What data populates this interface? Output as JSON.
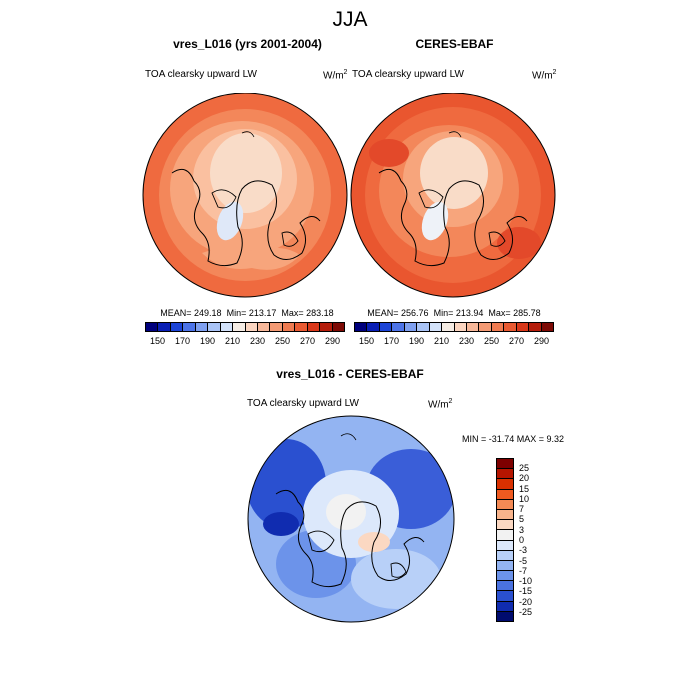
{
  "season": "JJA",
  "panels": {
    "model": {
      "title": "vres_L016 (yrs 2001-2004)",
      "variable": "TOA clearsky upward LW",
      "units": "W/m",
      "units_sup": "2",
      "mean": "MEAN= 249.18",
      "min": "Min= 213.17",
      "max": "Max= 283.18"
    },
    "obs": {
      "title": "CERES-EBAF",
      "variable": "TOA clearsky upward LW",
      "units": "W/m",
      "units_sup": "2",
      "mean": "MEAN= 256.76",
      "min": "Min= 213.94",
      "max": "Max= 285.78"
    },
    "diff": {
      "title": "vres_L016 - CERES-EBAF",
      "variable": "TOA clearsky upward LW",
      "units": "W/m",
      "units_sup": "2",
      "minmax": "MIN = -31.74 MAX =   9.32"
    }
  },
  "colorbar_abs": {
    "colors": [
      "#00007d",
      "#0a1fb5",
      "#1c44d6",
      "#4d74e8",
      "#7fa0f0",
      "#aac4f6",
      "#d3e2fa",
      "#f5ece4",
      "#fbd5c0",
      "#f7b89a",
      "#f39a74",
      "#ef7b51",
      "#e95a32",
      "#d9381a",
      "#b51e0c",
      "#7d0a05"
    ],
    "labels": [
      "150",
      "170",
      "190",
      "210",
      "230",
      "250",
      "270",
      "290"
    ]
  },
  "colorbar_diff": {
    "colors": [
      "#7d0000",
      "#b51500",
      "#d93000",
      "#ef5a20",
      "#f48a55",
      "#f8b48c",
      "#fbd8c2",
      "#f2f2f2",
      "#dce8fb",
      "#b8d0f8",
      "#93b4f2",
      "#6c93ea",
      "#4a72e0",
      "#2a50d0",
      "#102cb0",
      "#000b6e"
    ],
    "labels": [
      "25",
      "20",
      "15",
      "10",
      "7",
      "5",
      "3",
      "0",
      "-3",
      "-5",
      "-7",
      "-10",
      "-15",
      "-20",
      "-25"
    ]
  }
}
